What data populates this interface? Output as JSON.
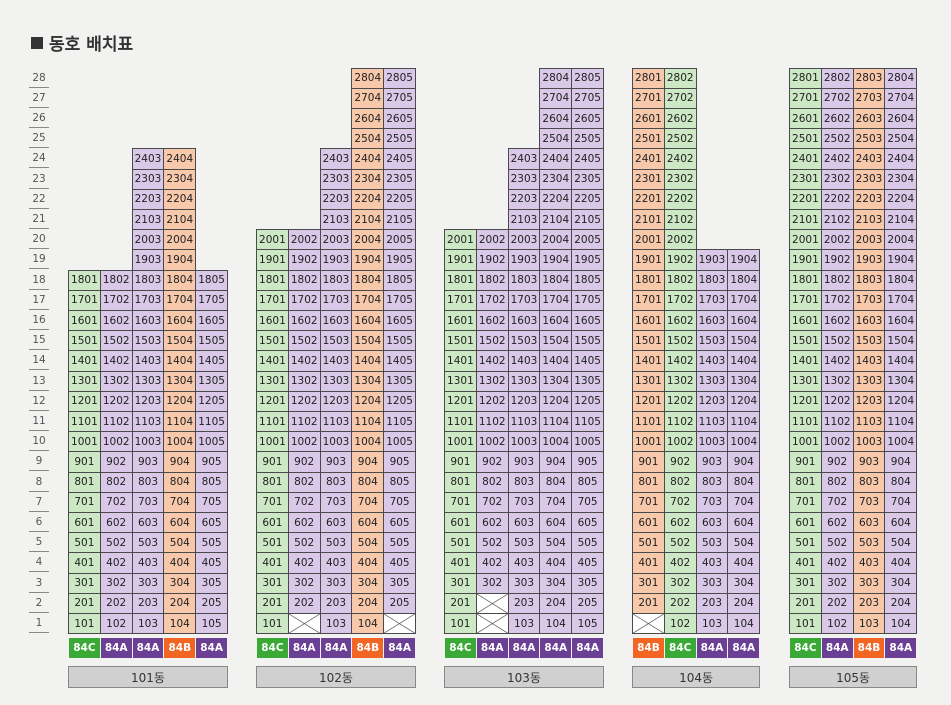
{
  "title": "동호 배치표",
  "floors": [
    "28",
    "27",
    "26",
    "25",
    "24",
    "23",
    "22",
    "21",
    "20",
    "19",
    "18",
    "17",
    "16",
    "15",
    "14",
    "13",
    "12",
    "11",
    "10",
    "9",
    "8",
    "7",
    "6",
    "5",
    "4",
    "3",
    "2",
    "1"
  ],
  "colors": {
    "green": "#cde8c4",
    "purple": "#d9c8e8",
    "orange": "#f7c8aa",
    "badge_green": "#3aa935",
    "badge_purple": "#6b3f94",
    "badge_orange": "#f26522"
  },
  "buildings": [
    {
      "name": "101동",
      "lines": [
        {
          "line": "01",
          "type": "84C",
          "color": "g",
          "top": 18,
          "missing": []
        },
        {
          "line": "02",
          "type": "84A",
          "color": "p",
          "top": 18,
          "missing": []
        },
        {
          "line": "03",
          "type": "84A",
          "color": "p",
          "top": 24,
          "missing": []
        },
        {
          "line": "04",
          "type": "84B",
          "color": "o",
          "top": 24,
          "missing": []
        },
        {
          "line": "05",
          "type": "84A",
          "color": "p",
          "top": 18,
          "missing": []
        }
      ]
    },
    {
      "name": "102동",
      "lines": [
        {
          "line": "01",
          "type": "84C",
          "color": "g",
          "top": 20,
          "missing": []
        },
        {
          "line": "02",
          "type": "84A",
          "color": "p",
          "top": 20,
          "missing": [
            1
          ]
        },
        {
          "line": "03",
          "type": "84A",
          "color": "p",
          "top": 24,
          "missing": []
        },
        {
          "line": "04",
          "type": "84B",
          "color": "o",
          "top": 28,
          "missing": []
        },
        {
          "line": "05",
          "type": "84A",
          "color": "p",
          "top": 28,
          "missing": [
            1
          ]
        }
      ]
    },
    {
      "name": "103동",
      "lines": [
        {
          "line": "01",
          "type": "84C",
          "color": "g",
          "top": 20,
          "missing": []
        },
        {
          "line": "02",
          "type": "84A",
          "color": "p",
          "top": 20,
          "missing": [
            1,
            2
          ]
        },
        {
          "line": "03",
          "type": "84A",
          "color": "p",
          "top": 24,
          "missing": []
        },
        {
          "line": "04",
          "type": "84A",
          "color": "p",
          "top": 28,
          "missing": []
        },
        {
          "line": "05",
          "type": "84A",
          "color": "p",
          "top": 28,
          "missing": []
        }
      ]
    },
    {
      "name": "104동",
      "lines": [
        {
          "line": "01",
          "type": "84B",
          "color": "o",
          "top": 28,
          "missing": [
            1
          ]
        },
        {
          "line": "02",
          "type": "84C",
          "color": "g",
          "top": 28,
          "missing": []
        },
        {
          "line": "03",
          "type": "84A",
          "color": "p",
          "top": 19,
          "missing": []
        },
        {
          "line": "04",
          "type": "84A",
          "color": "p",
          "top": 19,
          "missing": []
        }
      ]
    },
    {
      "name": "105동",
      "lines": [
        {
          "line": "01",
          "type": "84C",
          "color": "g",
          "top": 28,
          "missing": []
        },
        {
          "line": "02",
          "type": "84A",
          "color": "p",
          "top": 28,
          "missing": []
        },
        {
          "line": "03",
          "type": "84B",
          "color": "o",
          "top": 28,
          "missing": []
        },
        {
          "line": "04",
          "type": "84A",
          "color": "p",
          "top": 28,
          "missing": []
        }
      ]
    }
  ]
}
